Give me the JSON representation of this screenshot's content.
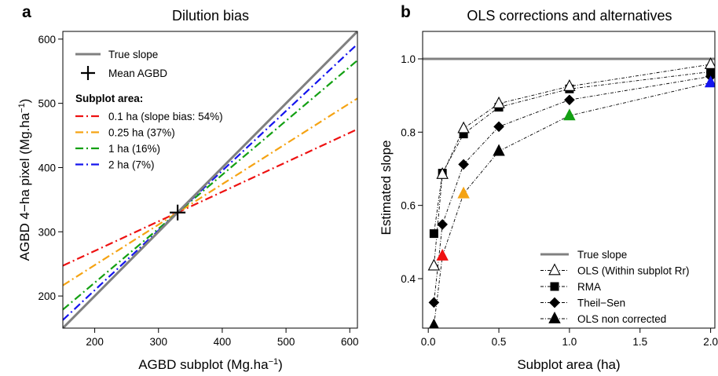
{
  "colors": {
    "red": "#ee1111",
    "orange": "#f5a313",
    "green": "#13a013",
    "blue": "#1414ee",
    "gray": "#808080",
    "black": "#000000"
  },
  "chart_data": [
    {
      "panel": "a",
      "type": "line",
      "title": "Dilution bias",
      "xlabel": "AGBD subplot (Mg.ha",
      "xlabel_sup": "−1",
      "xlabel_end": ")",
      "ylabel": "AGBD 4−ha pixel (Mg.ha",
      "ylabel_sup": "−1",
      "ylabel_end": ")",
      "xlim": [
        150,
        612
      ],
      "ylim": [
        150,
        612
      ],
      "xticks": [
        200,
        300,
        400,
        500,
        600
      ],
      "yticks": [
        200,
        300,
        400,
        500,
        600
      ],
      "mean_agbd": [
        330,
        330
      ],
      "mean_label": "Mean AGBD",
      "true_slope_label": "True slope",
      "legend_heading": "Subplot area:",
      "series": [
        {
          "name": "0.1 ha (slope bias: 54%)",
          "slope": 0.46,
          "color": "#ee1111"
        },
        {
          "name": "0.25 ha (37%)",
          "slope": 0.63,
          "color": "#f5a313"
        },
        {
          "name": "1 ha (16%)",
          "slope": 0.84,
          "color": "#13a013"
        },
        {
          "name": "2 ha (7%)",
          "slope": 0.93,
          "color": "#1414ee"
        }
      ]
    },
    {
      "panel": "b",
      "type": "line",
      "title": "OLS corrections and alternatives",
      "xlabel": "Subplot area (ha)",
      "ylabel": "Estimated slope",
      "xlim": [
        -0.04,
        2.03
      ],
      "ylim": [
        0.265,
        1.075
      ],
      "xticks": [
        "0.0",
        "0.5",
        "1.0",
        "1.5",
        "2.0"
      ],
      "xtick_values": [
        0,
        0.5,
        1.0,
        1.5,
        2.0
      ],
      "yticks": [
        "0.4",
        "0.6",
        "0.8",
        "1.0"
      ],
      "ytick_values": [
        0.4,
        0.6,
        0.8,
        1.0
      ],
      "true_slope": 1.0,
      "x": [
        0.04,
        0.1,
        0.25,
        0.5,
        1.0,
        2.0
      ],
      "series": [
        {
          "name": "True slope",
          "line": "solid",
          "values": [
            1.0,
            1.0,
            1.0,
            1.0,
            1.0,
            1.0
          ]
        },
        {
          "name": "OLS (Within subplot Rr)",
          "marker": "open-triangle",
          "values": [
            0.435,
            0.685,
            0.81,
            0.878,
            0.925,
            0.985
          ]
        },
        {
          "name": "RMA",
          "marker": "square",
          "values": [
            0.523,
            0.688,
            0.795,
            0.868,
            0.918,
            0.965
          ]
        },
        {
          "name": "Theil−Sen",
          "marker": "diamond",
          "values": [
            0.335,
            0.548,
            0.712,
            0.815,
            0.888,
            0.952
          ]
        },
        {
          "name": "OLS non corrected",
          "marker": "filled-triangle",
          "values": [
            0.272,
            0.462,
            0.632,
            0.748,
            0.845,
            0.935
          ],
          "point_colors": [
            "#000000",
            "#ee1111",
            "#f5a313",
            "#000000",
            "#13a013",
            "#1414ee"
          ]
        }
      ]
    }
  ]
}
